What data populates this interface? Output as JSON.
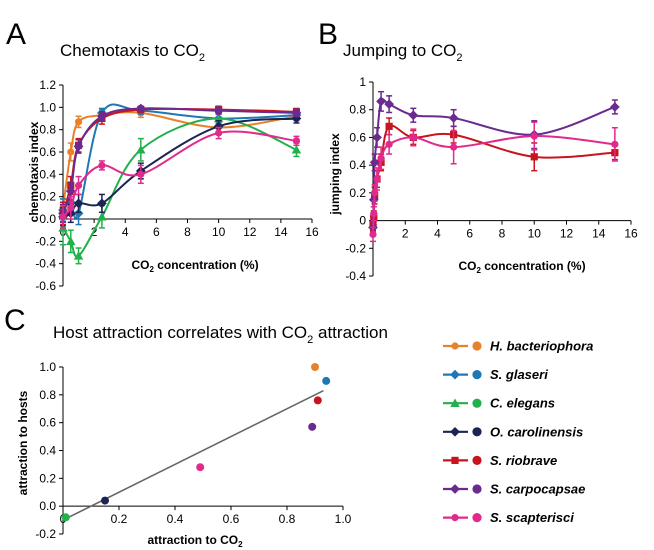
{
  "figure": {
    "legend": [
      {
        "name": "H. bacteriophora",
        "color": "#e8822a",
        "marker": "circle"
      },
      {
        "name": "S. glaseri",
        "color": "#1f78b4",
        "marker": "diamond"
      },
      {
        "name": "C. elegans",
        "color": "#21b14b",
        "marker": "triangle"
      },
      {
        "name": "O. carolinensis",
        "color": "#1b2452",
        "marker": "diamond"
      },
      {
        "name": "S. riobrave",
        "color": "#c8141e",
        "marker": "square"
      },
      {
        "name": "S. carpocapsae",
        "color": "#6b2a8f",
        "marker": "diamond"
      },
      {
        "name": "S. scapterisci",
        "color": "#e02a8c",
        "marker": "circle"
      }
    ]
  },
  "chart_data": [
    {
      "panel": "A",
      "type": "line",
      "title": "Chemotaxis to CO",
      "title_sub": "2",
      "xlabel": "CO",
      "xlabel_sub": "2",
      "xlabel_rest": " concentration (%)",
      "ylabel": "chemotaxis index",
      "xlim": [
        0,
        16
      ],
      "ylim": [
        -0.6,
        1.2
      ],
      "xticks": [
        0,
        2,
        4,
        6,
        8,
        10,
        12,
        14,
        16
      ],
      "yticks": [
        -0.6,
        -0.4,
        -0.2,
        0.0,
        0.2,
        0.4,
        0.6,
        0.8,
        1.0,
        1.2
      ],
      "ytick_labels": [
        "-0.6",
        "-0.4",
        "-0.2",
        "0.0",
        "0.2",
        "0.4",
        "0.6",
        "0.8",
        "1.0",
        "1.2"
      ],
      "series": [
        {
          "name": "H. bacteriophora",
          "x": [
            0,
            0.5,
            1,
            2.5,
            5,
            10,
            15
          ],
          "y": [
            0.1,
            0.6,
            0.87,
            0.93,
            0.95,
            0.82,
            0.92
          ],
          "err": [
            0.08,
            0.08,
            0.05,
            0.05,
            0.04,
            0.05,
            0.04
          ]
        },
        {
          "name": "S. glaseri",
          "x": [
            0,
            0.5,
            1,
            2.5,
            5,
            10,
            15
          ],
          "y": [
            0.08,
            0.15,
            0.05,
            0.95,
            0.97,
            0.9,
            0.93
          ],
          "err": [
            0.1,
            0.1,
            0.1,
            0.04,
            0.03,
            0.04,
            0.03
          ]
        },
        {
          "name": "C. elegans",
          "x": [
            0,
            0.5,
            1,
            2.5,
            5,
            10,
            15
          ],
          "y": [
            -0.08,
            -0.2,
            -0.33,
            0.02,
            0.62,
            0.9,
            0.62
          ],
          "err": [
            0.15,
            0.1,
            0.07,
            0.1,
            0.1,
            0.05,
            0.06
          ]
        },
        {
          "name": "O. carolinensis",
          "x": [
            0,
            0.5,
            1,
            2.5,
            5,
            10,
            15
          ],
          "y": [
            0.02,
            0.05,
            0.14,
            0.14,
            0.43,
            0.83,
            0.9
          ],
          "err": [
            0.08,
            0.08,
            0.08,
            0.08,
            0.07,
            0.05,
            0.04
          ]
        },
        {
          "name": "S. riobrave",
          "x": [
            0,
            0.5,
            1,
            2.5,
            5,
            10,
            15
          ],
          "y": [
            0.05,
            0.3,
            0.66,
            0.9,
            0.98,
            0.98,
            0.96
          ],
          "err": [
            0.1,
            0.08,
            0.06,
            0.05,
            0.02,
            0.03,
            0.03
          ]
        },
        {
          "name": "S. carpocapsae",
          "x": [
            0,
            0.5,
            1,
            2.5,
            5,
            10,
            15
          ],
          "y": [
            0.05,
            0.25,
            0.65,
            0.92,
            0.99,
            0.97,
            0.95
          ],
          "err": [
            0.08,
            0.08,
            0.06,
            0.04,
            0.02,
            0.03,
            0.03
          ]
        },
        {
          "name": "S. scapterisci",
          "x": [
            0,
            0.5,
            1,
            2.5,
            5,
            10,
            15
          ],
          "y": [
            0.02,
            0.1,
            0.3,
            0.48,
            0.4,
            0.77,
            0.7
          ],
          "err": [
            0.1,
            0.1,
            0.08,
            0.04,
            0.08,
            0.05,
            0.04
          ]
        }
      ]
    },
    {
      "panel": "B",
      "type": "line",
      "title": "Jumping to CO",
      "title_sub": "2",
      "xlabel": "CO",
      "xlabel_sub": "2",
      "xlabel_rest": " concentration (%)",
      "ylabel": "jumping index",
      "xlim": [
        0,
        16
      ],
      "ylim": [
        -0.4,
        1.0
      ],
      "xticks": [
        0,
        2,
        4,
        6,
        8,
        10,
        12,
        14,
        16
      ],
      "yticks": [
        -0.4,
        -0.2,
        0.0,
        0.2,
        0.4,
        0.6,
        0.8,
        1.0
      ],
      "ytick_labels": [
        "-0.4",
        "-0.2",
        "0",
        "0.2",
        "0.4",
        "0.6",
        "0.8",
        "1"
      ],
      "series": [
        {
          "name": "S. riobrave",
          "x": [
            0,
            0.05,
            0.1,
            0.25,
            0.5,
            1,
            2.5,
            5,
            10,
            15
          ],
          "y": [
            -0.02,
            0.02,
            0.18,
            0.3,
            0.42,
            0.68,
            0.6,
            0.62,
            0.46,
            0.49
          ],
          "err": [
            0.05,
            0.05,
            0.06,
            0.06,
            0.06,
            0.06,
            0.05,
            0.06,
            0.1,
            0.05
          ]
        },
        {
          "name": "S. carpocapsae",
          "x": [
            0,
            0.05,
            0.1,
            0.25,
            0.5,
            1,
            2.5,
            5,
            10,
            15
          ],
          "y": [
            -0.05,
            0.15,
            0.42,
            0.6,
            0.86,
            0.84,
            0.76,
            0.74,
            0.62,
            0.82
          ],
          "err": [
            0.05,
            0.05,
            0.06,
            0.07,
            0.07,
            0.06,
            0.05,
            0.06,
            0.1,
            0.05
          ]
        },
        {
          "name": "S. scapterisci",
          "x": [
            0,
            0.05,
            0.1,
            0.25,
            0.5,
            1,
            2.5,
            5,
            10,
            15
          ],
          "y": [
            -0.1,
            0.05,
            0.2,
            0.3,
            0.45,
            0.55,
            0.6,
            0.53,
            0.61,
            0.55
          ],
          "err": [
            0.05,
            0.05,
            0.06,
            0.08,
            0.08,
            0.07,
            0.06,
            0.12,
            0.1,
            0.12
          ]
        }
      ]
    },
    {
      "panel": "C",
      "type": "scatter",
      "title": "Host attraction correlates with CO",
      "title_sub": "2",
      "title_rest": " attraction",
      "xlabel": "attraction to CO",
      "xlabel_sub": "2",
      "ylabel": "attraction to hosts",
      "xlim": [
        0,
        1.0
      ],
      "ylim": [
        -0.2,
        1.0
      ],
      "xticks": [
        0,
        0.2,
        0.4,
        0.6,
        0.8,
        1.0
      ],
      "xtick_labels": [
        "0",
        "0.2",
        "0.4",
        "0.6",
        "0.8",
        "1.0"
      ],
      "yticks": [
        -0.2,
        0,
        0.2,
        0.4,
        0.6,
        0.8,
        1.0
      ],
      "ytick_labels": [
        "-0.2",
        "0.0",
        "0.2",
        "0.4",
        "0.6",
        "0.8",
        "1.0"
      ],
      "points": [
        {
          "name": "H. bacteriophora",
          "x": 0.9,
          "y": 1.0
        },
        {
          "name": "S. glaseri",
          "x": 0.94,
          "y": 0.9
        },
        {
          "name": "S. riobrave",
          "x": 0.91,
          "y": 0.76
        },
        {
          "name": "S. carpocapsae",
          "x": 0.89,
          "y": 0.57
        },
        {
          "name": "S. scapterisci",
          "x": 0.49,
          "y": 0.28
        },
        {
          "name": "O. carolinensis",
          "x": 0.15,
          "y": 0.04
        },
        {
          "name": "C. elegans",
          "x": 0.01,
          "y": -0.08
        }
      ],
      "fit_line": {
        "x": [
          0.01,
          0.93
        ],
        "y": [
          -0.09,
          0.83
        ]
      }
    }
  ]
}
